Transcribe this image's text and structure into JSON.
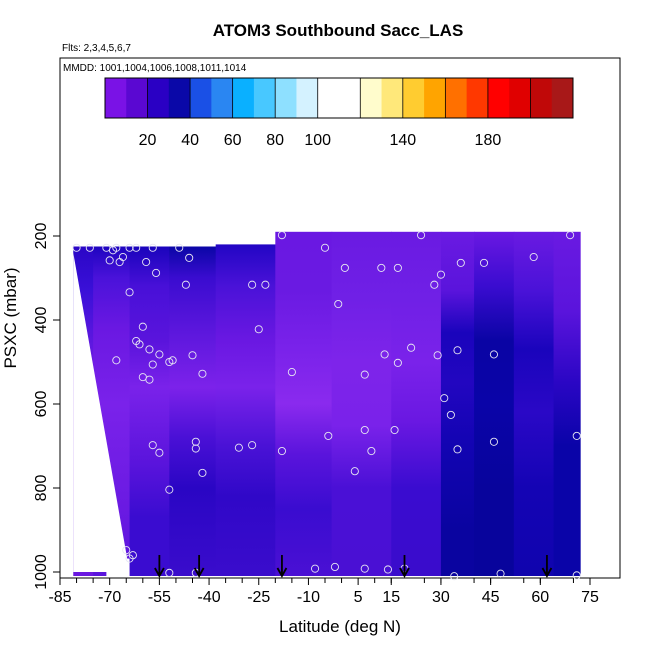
{
  "chart_data": {
    "type": "heatmap",
    "title": "ATOM3 Southbound Sacc_LAS",
    "subtitle_flights": "Flts: 2,3,4,5,6,7",
    "subtitle_dates": "MMDD: 1001,1004,1006,1008,1011,1014",
    "xlabel": "Latitude (deg N)",
    "ylabel": "PSXC (mbar)",
    "xlim": [
      -85,
      85
    ],
    "ylim": [
      1010,
      0
    ],
    "x_ticks": [
      -85,
      -70,
      -55,
      -40,
      -25,
      -10,
      5,
      15,
      30,
      45,
      60,
      75
    ],
    "y_ticks": [
      200,
      400,
      600,
      800,
      1000
    ],
    "colorbar": {
      "range": [
        0,
        220
      ],
      "tick_values": [
        20,
        40,
        60,
        80,
        100,
        140,
        180
      ],
      "bands": [
        {
          "from": 0,
          "to": 10,
          "color": "#7a12e6"
        },
        {
          "from": 10,
          "to": 20,
          "color": "#5a08d2"
        },
        {
          "from": 20,
          "to": 30,
          "color": "#2a00c4"
        },
        {
          "from": 30,
          "to": 40,
          "color": "#0a08a8"
        },
        {
          "from": 40,
          "to": 50,
          "color": "#1a50e6"
        },
        {
          "from": 50,
          "to": 60,
          "color": "#2a86f2"
        },
        {
          "from": 60,
          "to": 70,
          "color": "#0ab0ff"
        },
        {
          "from": 70,
          "to": 80,
          "color": "#48c8ff"
        },
        {
          "from": 80,
          "to": 90,
          "color": "#8ee0ff"
        },
        {
          "from": 90,
          "to": 100,
          "color": "#d4f2ff"
        },
        {
          "from": 100,
          "to": 120,
          "color": "#ffffff"
        },
        {
          "from": 120,
          "to": 130,
          "color": "#fffccc"
        },
        {
          "from": 130,
          "to": 140,
          "color": "#ffe87a"
        },
        {
          "from": 140,
          "to": 150,
          "color": "#ffcc30"
        },
        {
          "from": 150,
          "to": 160,
          "color": "#ffa400"
        },
        {
          "from": 160,
          "to": 170,
          "color": "#ff7000"
        },
        {
          "from": 170,
          "to": 180,
          "color": "#ff3800"
        },
        {
          "from": 180,
          "to": 190,
          "color": "#ff0000"
        },
        {
          "from": 190,
          "to": 200,
          "color": "#e00000"
        },
        {
          "from": 200,
          "to": 210,
          "color": "#c00808"
        },
        {
          "from": 210,
          "to": 220,
          "color": "#a81818"
        }
      ]
    },
    "field_columns": [
      {
        "lat": [
          -81,
          -75
        ],
        "top": 225,
        "bottom": 1010,
        "colors": [
          [
            225,
            "#2a06c6"
          ],
          [
            330,
            "#3a10d8"
          ],
          [
            500,
            "#6a1ae2"
          ],
          [
            700,
            "#7a22ea"
          ],
          [
            900,
            "#6a18e0"
          ],
          [
            1010,
            "#6a18e0"
          ]
        ]
      },
      {
        "lat": [
          -75,
          -64
        ],
        "top": 225,
        "bottom": 1010,
        "colors": [
          [
            225,
            "#1e04c0"
          ],
          [
            300,
            "#4a12da"
          ],
          [
            420,
            "#6a18e2"
          ],
          [
            600,
            "#7a22ea"
          ],
          [
            850,
            "#6a1ae2"
          ],
          [
            1010,
            "#5a14dc"
          ]
        ]
      },
      {
        "lat": [
          -64,
          -52
        ],
        "top": 225,
        "bottom": 1010,
        "colors": [
          [
            225,
            "#1a04bc"
          ],
          [
            320,
            "#4810d8"
          ],
          [
            450,
            "#5a14dc"
          ],
          [
            560,
            "#7a22ea"
          ],
          [
            740,
            "#5a14dc"
          ],
          [
            870,
            "#3a0cd0"
          ],
          [
            1010,
            "#3a0cd0"
          ]
        ]
      },
      {
        "lat": [
          -52,
          -38
        ],
        "top": 225,
        "bottom": 1010,
        "colors": [
          [
            225,
            "#0a06a6"
          ],
          [
            300,
            "#3a0cd0"
          ],
          [
            420,
            "#5a16dc"
          ],
          [
            560,
            "#7c22ea"
          ],
          [
            680,
            "#4a10d6"
          ],
          [
            800,
            "#2a06c4"
          ],
          [
            1010,
            "#3a0ccc"
          ]
        ]
      },
      {
        "lat": [
          -38,
          -20
        ],
        "top": 220,
        "bottom": 1010,
        "colors": [
          [
            220,
            "#2206c4"
          ],
          [
            320,
            "#4a12d8"
          ],
          [
            450,
            "#6a18e2"
          ],
          [
            560,
            "#7a22ea"
          ],
          [
            700,
            "#4a12d6"
          ],
          [
            820,
            "#3008c8"
          ],
          [
            1010,
            "#3a0ccc"
          ]
        ]
      },
      {
        "lat": [
          -20,
          -3
        ],
        "top": 190,
        "bottom": 1010,
        "colors": [
          [
            190,
            "#6a18e2"
          ],
          [
            330,
            "#6a1ae2"
          ],
          [
            470,
            "#7a22ea"
          ],
          [
            600,
            "#8a2aee"
          ],
          [
            720,
            "#5a14dc"
          ],
          [
            850,
            "#3a0cd0"
          ],
          [
            1010,
            "#4a10d4"
          ]
        ]
      },
      {
        "lat": [
          -3,
          15
        ],
        "top": 190,
        "bottom": 1010,
        "colors": [
          [
            190,
            "#6a1ae2"
          ],
          [
            350,
            "#7020e6"
          ],
          [
            500,
            "#7e24ea"
          ],
          [
            650,
            "#7a22ea"
          ],
          [
            800,
            "#4a10d6"
          ],
          [
            1010,
            "#4a10d4"
          ]
        ]
      },
      {
        "lat": [
          15,
          30
        ],
        "top": 190,
        "bottom": 1010,
        "colors": [
          [
            190,
            "#6a1ae2"
          ],
          [
            350,
            "#7020e6"
          ],
          [
            500,
            "#7a22ea"
          ],
          [
            640,
            "#6a18e2"
          ],
          [
            800,
            "#3a0cd0"
          ],
          [
            1010,
            "#3a0ccc"
          ]
        ]
      },
      {
        "lat": [
          30,
          40
        ],
        "top": 190,
        "bottom": 1010,
        "colors": [
          [
            190,
            "#6a1ae2"
          ],
          [
            330,
            "#5a14dc"
          ],
          [
            430,
            "#1a04bc"
          ],
          [
            550,
            "#2206c0"
          ],
          [
            700,
            "#1204b2"
          ],
          [
            900,
            "#0a04a0"
          ],
          [
            1010,
            "#0a04a0"
          ]
        ]
      },
      {
        "lat": [
          40,
          52
        ],
        "top": 190,
        "bottom": 1010,
        "colors": [
          [
            190,
            "#6a18e2"
          ],
          [
            320,
            "#3a0cd0"
          ],
          [
            450,
            "#0a04a4"
          ],
          [
            600,
            "#0a04a8"
          ],
          [
            800,
            "#08049c"
          ],
          [
            1010,
            "#08049c"
          ]
        ]
      },
      {
        "lat": [
          52,
          64
        ],
        "top": 190,
        "bottom": 1010,
        "colors": [
          [
            190,
            "#6a1ae2"
          ],
          [
            330,
            "#4a12d8"
          ],
          [
            470,
            "#1a04bc"
          ],
          [
            620,
            "#2a08c6"
          ],
          [
            800,
            "#1404b4"
          ],
          [
            1010,
            "#1004ae"
          ]
        ]
      },
      {
        "lat": [
          64,
          72
        ],
        "top": 190,
        "bottom": 1010,
        "colors": [
          [
            190,
            "#6a1ae2"
          ],
          [
            380,
            "#5a14dc"
          ],
          [
            550,
            "#2a06c4"
          ],
          [
            700,
            "#0a04a8"
          ],
          [
            900,
            "#0a04a8"
          ],
          [
            1010,
            "#0a04a8"
          ]
        ]
      }
    ],
    "observations": [
      [
        -80,
        228
      ],
      [
        -76,
        228
      ],
      [
        -71,
        228
      ],
      [
        -69,
        234
      ],
      [
        -68,
        228
      ],
      [
        -66,
        250
      ],
      [
        -64,
        228
      ],
      [
        -70,
        258
      ],
      [
        -67,
        262
      ],
      [
        -62,
        228
      ],
      [
        -57,
        228
      ],
      [
        -49,
        228
      ],
      [
        -46,
        252
      ],
      [
        -59,
        262
      ],
      [
        -56,
        288
      ],
      [
        -64,
        334
      ],
      [
        -47,
        316
      ],
      [
        -27,
        316
      ],
      [
        -23,
        316
      ],
      [
        -18,
        198
      ],
      [
        -5,
        228
      ],
      [
        -1,
        362
      ],
      [
        1,
        276
      ],
      [
        12,
        276
      ],
      [
        17,
        276
      ],
      [
        24,
        198
      ],
      [
        28,
        316
      ],
      [
        30,
        292
      ],
      [
        36,
        264
      ],
      [
        43,
        264
      ],
      [
        58,
        250
      ],
      [
        69,
        198
      ],
      [
        -60,
        416
      ],
      [
        -25,
        422
      ],
      [
        -68,
        496
      ],
      [
        -62,
        450
      ],
      [
        -61,
        458
      ],
      [
        -58,
        470
      ],
      [
        -55,
        482
      ],
      [
        -52,
        500
      ],
      [
        -51,
        496
      ],
      [
        -45,
        484
      ],
      [
        -57,
        506
      ],
      [
        -58,
        542
      ],
      [
        -60,
        536
      ],
      [
        -42,
        528
      ],
      [
        -15,
        524
      ],
      [
        7,
        530
      ],
      [
        13,
        482
      ],
      [
        17,
        502
      ],
      [
        21,
        466
      ],
      [
        29,
        484
      ],
      [
        35,
        472
      ],
      [
        46,
        482
      ],
      [
        31,
        586
      ],
      [
        33,
        626
      ],
      [
        7,
        662
      ],
      [
        -4,
        676
      ],
      [
        16,
        662
      ],
      [
        -57,
        698
      ],
      [
        -44,
        690
      ],
      [
        -44,
        706
      ],
      [
        -55,
        716
      ],
      [
        -31,
        704
      ],
      [
        -27,
        698
      ],
      [
        -18,
        712
      ],
      [
        9,
        712
      ],
      [
        35,
        708
      ],
      [
        46,
        690
      ],
      [
        71,
        676
      ],
      [
        -42,
        764
      ],
      [
        4,
        760
      ],
      [
        -52,
        804
      ],
      [
        -65,
        948
      ],
      [
        -63,
        960
      ],
      [
        -64,
        968
      ],
      [
        -52,
        1002
      ],
      [
        -44,
        1002
      ],
      [
        -8,
        992
      ],
      [
        -2,
        988
      ],
      [
        7,
        992
      ],
      [
        14,
        994
      ],
      [
        19,
        992
      ],
      [
        34,
        1010
      ],
      [
        48,
        1004
      ],
      [
        71,
        1008
      ]
    ],
    "arrows_lat": [
      -55,
      -43,
      -18,
      19,
      62
    ],
    "excluded_corner": {
      "lat": [
        -71,
        -64
      ],
      "p_top": 968
    }
  }
}
